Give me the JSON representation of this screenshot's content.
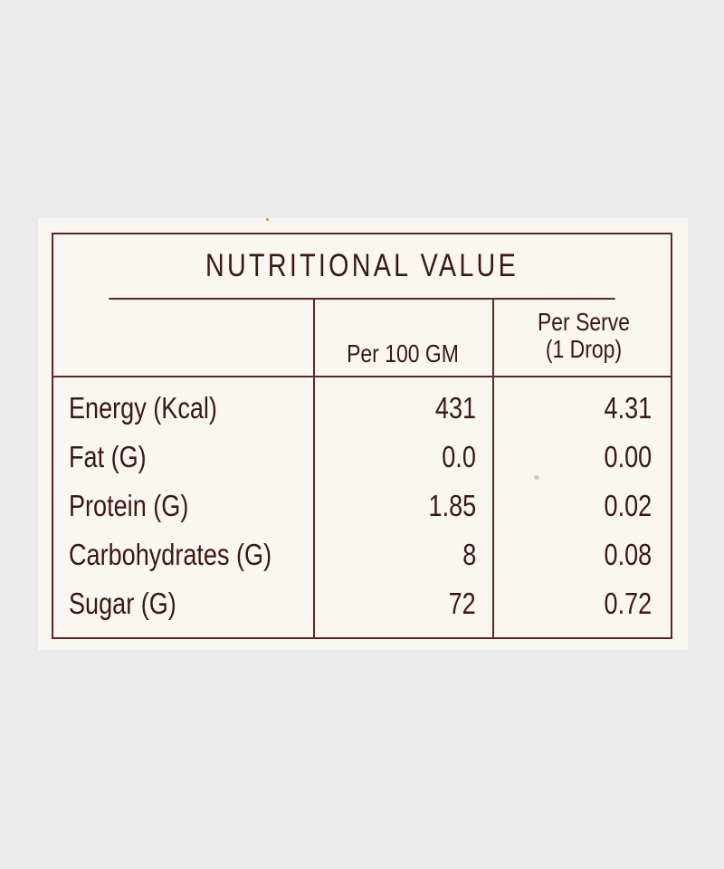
{
  "label": {
    "title": "NUTRITIONAL VALUE",
    "columns": {
      "per_100": "Per 100 GM",
      "per_serve_line1": "Per Serve",
      "per_serve_line2": "(1 Drop)"
    },
    "rows": [
      {
        "name": "Energy (Kcal)",
        "per_100": "431",
        "per_serve": "4.31"
      },
      {
        "name": "Fat (G)",
        "per_100": "0.0",
        "per_serve": "0.00"
      },
      {
        "name": "Protein (G)",
        "per_100": "1.85",
        "per_serve": "0.02"
      },
      {
        "name": "Carbohydrates (G)",
        "per_100": "8",
        "per_serve": "0.08"
      },
      {
        "name": "Sugar (G)",
        "per_100": "72",
        "per_serve": "0.72"
      }
    ]
  },
  "colors": {
    "background": "#ecebec",
    "label_paper": "#faf6f2",
    "ink": "#3a1813",
    "rule": "#5a2a20"
  }
}
